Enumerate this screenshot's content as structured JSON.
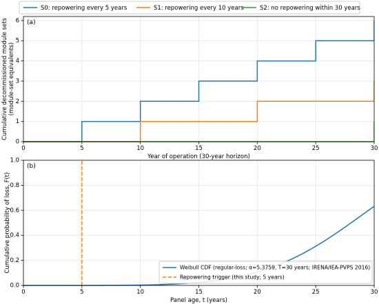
{
  "legend": {
    "entries": [
      {
        "label": "S0: repowering every 5 years",
        "color": "#1f77b4"
      },
      {
        "label": "S1: repowering every 10 years",
        "color": "#ff7f0e"
      },
      {
        "label": "S2: no repowering within 30 years",
        "color": "#2ca02c"
      }
    ],
    "placement": "top-center, above panels"
  },
  "chart_data": [
    {
      "type": "line",
      "panel_label": "(a)",
      "xlabel": "Year of operation (30-year horizon)",
      "ylabel_lines": [
        "Cumulative decommissioned module sets",
        "(module-set equivalents)"
      ],
      "xlim": [
        0,
        30
      ],
      "ylim": [
        0,
        6.2
      ],
      "xticks": [
        0,
        5,
        10,
        15,
        20,
        25,
        30
      ],
      "yticks": [
        0,
        1,
        2,
        3,
        4,
        5,
        6
      ],
      "grid": true,
      "step": "post",
      "series": [
        {
          "name": "S0: repowering every 5 years",
          "color": "#1f77b4",
          "x": [
            0,
            5,
            10,
            15,
            20,
            25,
            30
          ],
          "y": [
            0,
            1,
            2,
            3,
            4,
            5,
            6
          ]
        },
        {
          "name": "S1: repowering every 10 years",
          "color": "#ff7f0e",
          "x": [
            0,
            10,
            20,
            30
          ],
          "y": [
            0,
            1,
            2,
            3
          ]
        },
        {
          "name": "S2: no repowering within 30 years",
          "color": "#2ca02c",
          "x": [
            0,
            30
          ],
          "y": [
            0,
            1
          ]
        }
      ]
    },
    {
      "type": "line",
      "panel_label": "(b)",
      "xlabel": "Panel age, t (years)",
      "ylabel": "Cumulative probability of loss, F(t)",
      "xlim": [
        0,
        30
      ],
      "ylim": [
        0,
        1.0
      ],
      "xticks": [
        0,
        5,
        10,
        15,
        20,
        25,
        30
      ],
      "yticks": [
        0.0,
        0.2,
        0.4,
        0.6,
        0.8,
        1.0
      ],
      "ytick_labels": [
        "0.0",
        "0.2",
        "0.4",
        "0.6",
        "0.8",
        "1.0"
      ],
      "grid": true,
      "legend_placement": "lower-right",
      "series": [
        {
          "name": "Weibull CDF (regular-loss; α=5.3759, T=30 years; IRENA/IEA-PVPS 2016)",
          "color": "#1f77b4",
          "style": "solid",
          "x": [
            0,
            5,
            10,
            12.5,
            15,
            17.5,
            20,
            22.5,
            25,
            27.5,
            30
          ],
          "y": [
            0,
            0.0001,
            0.0027,
            0.0089,
            0.0236,
            0.0536,
            0.1059,
            0.1879,
            0.3004,
            0.4491,
            0.6321
          ]
        },
        {
          "name": "Repowering trigger (this study; 5 years)",
          "color": "#ff7f0e",
          "style": "dashed",
          "x": [
            5,
            5
          ],
          "y": [
            0,
            1.0
          ]
        }
      ]
    }
  ]
}
